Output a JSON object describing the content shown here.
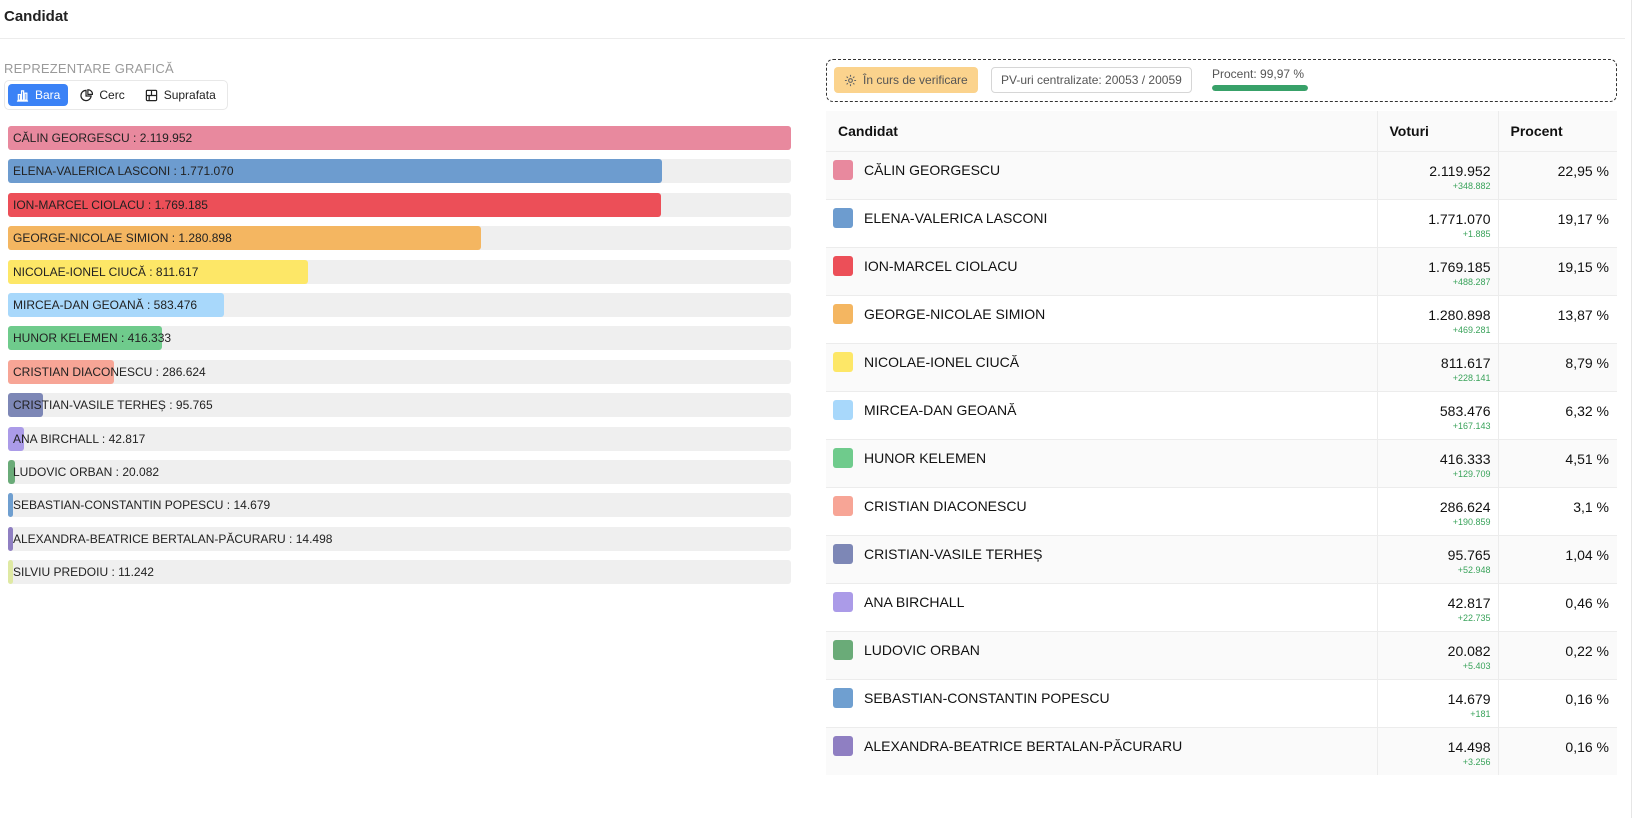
{
  "header": {
    "title": "Candidat"
  },
  "chart_section": {
    "label": "REPREZENTARE GRAFICĂ",
    "tabs": [
      {
        "label": "Bara",
        "icon": "bar-chart-icon",
        "active": true
      },
      {
        "label": "Cerc",
        "icon": "pie-chart-icon",
        "active": false
      },
      {
        "label": "Suprafata",
        "icon": "area-chart-icon",
        "active": false
      }
    ]
  },
  "status": {
    "verification_label": "În curs de verificare",
    "verification_icon": "gear-icon",
    "pv_label": "PV-uri centralizate: 20053 / 20059",
    "percent_label": "Procent: 99,97 %",
    "percent_value": 99.97
  },
  "table": {
    "headers": {
      "candidate": "Candidat",
      "votes": "Voturi",
      "percent": "Procent"
    },
    "rows": [
      {
        "name": "CĂLIN GEORGESCU",
        "votes": "2.119.952",
        "delta": "+348.882",
        "percent": "22,95 %",
        "color": "#e8899e"
      },
      {
        "name": "ELENA-VALERICA LASCONI",
        "votes": "1.771.070",
        "delta": "+1.885",
        "percent": "19,17 %",
        "color": "#6d9ccf"
      },
      {
        "name": "ION-MARCEL CIOLACU",
        "votes": "1.769.185",
        "delta": "+488.287",
        "percent": "19,15 %",
        "color": "#ec4f58"
      },
      {
        "name": "GEORGE-NICOLAE SIMION",
        "votes": "1.280.898",
        "delta": "+469.281",
        "percent": "13,87 %",
        "color": "#f4b661"
      },
      {
        "name": "NICOLAE-IONEL CIUCĂ",
        "votes": "811.617",
        "delta": "+228.141",
        "percent": "8,79 %",
        "color": "#fde767"
      },
      {
        "name": "MIRCEA-DAN GEOANĂ",
        "votes": "583.476",
        "delta": "+167.143",
        "percent": "6,32 %",
        "color": "#a8d8fb"
      },
      {
        "name": "HUNOR KELEMEN",
        "votes": "416.333",
        "delta": "+129.709",
        "percent": "4,51 %",
        "color": "#6fcb8c"
      },
      {
        "name": "CRISTIAN DIACONESCU",
        "votes": "286.624",
        "delta": "+190.859",
        "percent": "3,1 %",
        "color": "#f7a596"
      },
      {
        "name": "CRISTIAN-VASILE TERHEȘ",
        "votes": "95.765",
        "delta": "+52.948",
        "percent": "1,04 %",
        "color": "#7d87b6"
      },
      {
        "name": "ANA BIRCHALL",
        "votes": "42.817",
        "delta": "+22.735",
        "percent": "0,46 %",
        "color": "#ab9be8"
      },
      {
        "name": "LUDOVIC ORBAN",
        "votes": "20.082",
        "delta": "+5.403",
        "percent": "0,22 %",
        "color": "#6aab78"
      },
      {
        "name": "SEBASTIAN-CONSTANTIN POPESCU",
        "votes": "14.679",
        "delta": "+181",
        "percent": "0,16 %",
        "color": "#6f9fd0"
      },
      {
        "name": "ALEXANDRA-BEATRICE BERTALAN-PĂCURARU",
        "votes": "14.498",
        "delta": "+3.256",
        "percent": "0,16 %",
        "color": "#8f7fc2"
      }
    ]
  },
  "chart_data": {
    "type": "bar",
    "orientation": "horizontal",
    "categories": [
      "CĂLIN GEORGESCU",
      "ELENA-VALERICA LASCONI",
      "ION-MARCEL CIOLACU",
      "GEORGE-NICOLAE SIMION",
      "NICOLAE-IONEL CIUCĂ",
      "MIRCEA-DAN GEOANĂ",
      "HUNOR KELEMEN",
      "CRISTIAN DIACONESCU",
      "CRISTIAN-VASILE TERHEȘ",
      "ANA BIRCHALL",
      "LUDOVIC ORBAN",
      "SEBASTIAN-CONSTANTIN POPESCU",
      "ALEXANDRA-BEATRICE BERTALAN-PĂCURARU",
      "SILVIU PREDOIU"
    ],
    "values": [
      2119952,
      1771070,
      1769185,
      1280898,
      811617,
      583476,
      416333,
      286624,
      95765,
      42817,
      20082,
      14679,
      14498,
      11242
    ],
    "value_labels": [
      "2.119.952",
      "1.771.070",
      "1.769.185",
      "1.280.898",
      "811.617",
      "583.476",
      "416.333",
      "286.624",
      "95.765",
      "42.817",
      "20.082",
      "14.679",
      "14.498",
      "11.242"
    ],
    "colors": [
      "#e8899e",
      "#6d9ccf",
      "#ec4f58",
      "#f4b661",
      "#fde767",
      "#a8d8fb",
      "#6fcb8c",
      "#f7a596",
      "#7d87b6",
      "#ab9be8",
      "#6aab78",
      "#6f9fd0",
      "#8f7fc2",
      "#dfe9a3"
    ],
    "xlim": [
      0,
      2119952
    ],
    "title": "",
    "xlabel": "",
    "ylabel": "",
    "grid": false
  }
}
